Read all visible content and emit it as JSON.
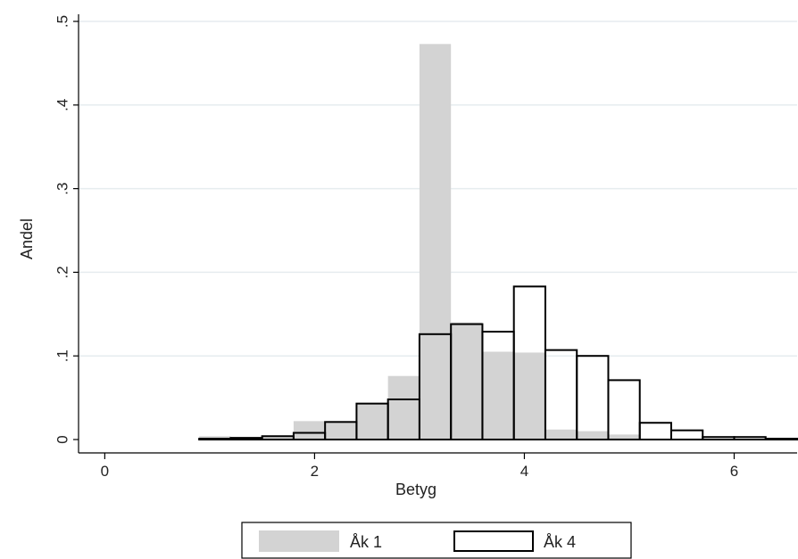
{
  "chart_data": {
    "type": "bar",
    "xlabel": "Betyg",
    "ylabel": "Andel",
    "xlim": [
      -0.25,
      6.6
    ],
    "ylim": [
      0,
      0.5
    ],
    "x_ticks": [
      {
        "value": 0,
        "label": "0"
      },
      {
        "value": 2,
        "label": "2"
      },
      {
        "value": 4,
        "label": "4"
      },
      {
        "value": 6,
        "label": "6"
      }
    ],
    "y_ticks": [
      {
        "value": 0,
        "label": "0"
      },
      {
        "value": 0.1,
        "label": ".1"
      },
      {
        "value": 0.2,
        "label": ".2"
      },
      {
        "value": 0.3,
        "label": ".3"
      },
      {
        "value": 0.4,
        "label": ".4"
      },
      {
        "value": 0.5,
        "label": ".5"
      }
    ],
    "grid": true,
    "bin_width": 0.3,
    "bin_starts": [
      0.9,
      1.2,
      1.5,
      1.8,
      2.1,
      2.4,
      2.7,
      3.0,
      3.3,
      3.6,
      3.9,
      4.2,
      4.5,
      4.8,
      5.1,
      5.4,
      5.7,
      6.0,
      6.3
    ],
    "series": [
      {
        "name": "Åk 1",
        "style": "filled",
        "color": "#d3d3d3",
        "values": [
          0.004,
          0.001,
          0.004,
          0.022,
          0.021,
          0.043,
          0.076,
          0.473,
          0.14,
          0.105,
          0.104,
          0.012,
          0.01,
          0.006,
          0.001,
          0.001,
          0.0,
          0.0,
          0.0
        ]
      },
      {
        "name": "Åk 4",
        "style": "outline",
        "color": "#000000",
        "values": [
          0.001,
          0.002,
          0.004,
          0.008,
          0.021,
          0.043,
          0.048,
          0.126,
          0.138,
          0.129,
          0.183,
          0.107,
          0.1,
          0.071,
          0.02,
          0.011,
          0.003,
          0.003,
          0.001
        ]
      }
    ],
    "legend_position": "bottom"
  }
}
